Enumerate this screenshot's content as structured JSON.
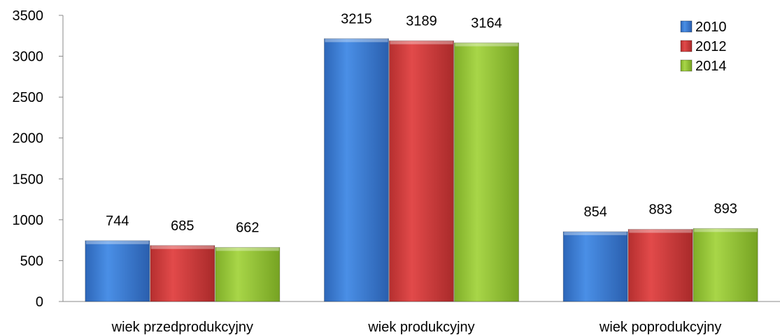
{
  "chart_data": {
    "type": "bar",
    "title": "",
    "xlabel": "",
    "ylabel": "",
    "ylim": [
      0,
      3500
    ],
    "yticks": [
      0,
      500,
      1000,
      1500,
      2000,
      2500,
      3000,
      3500
    ],
    "categories": [
      "wiek przedprodukcyjny",
      "wiek produkcyjny",
      "wiek poprodukcyjny"
    ],
    "series": [
      {
        "name": "2010",
        "values": [
          744,
          3215,
          854
        ],
        "color": "#3c7fd6"
      },
      {
        "name": "2012",
        "values": [
          685,
          3189,
          883
        ],
        "color": "#d84040"
      },
      {
        "name": "2014",
        "values": [
          662,
          3164,
          893
        ],
        "color": "#9ccb3c"
      }
    ],
    "legend_position": "top-right",
    "grid": false,
    "data_labels": true
  }
}
